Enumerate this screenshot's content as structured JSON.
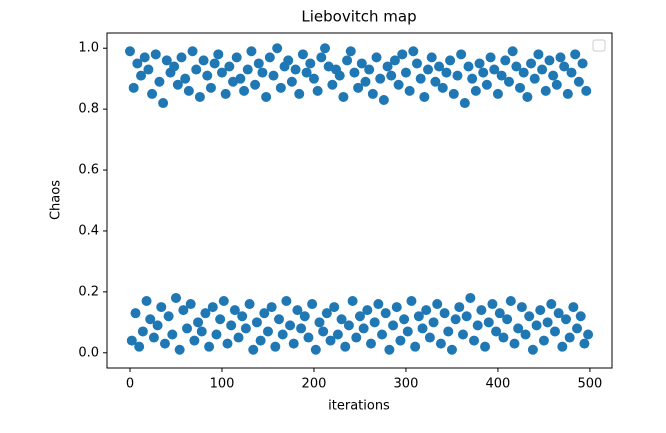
{
  "chart_data": {
    "type": "scatter",
    "title": "Liebovitch map",
    "xlabel": "iterations",
    "ylabel": "Chaos",
    "color": "#1f77b4",
    "xlim": [
      -25,
      524
    ],
    "ylim": [
      -0.05,
      1.05
    ],
    "xticks": [
      0,
      100,
      200,
      300,
      400,
      500
    ],
    "yticks": [
      {
        "value": 0,
        "label": "0.0"
      },
      0.2,
      0.4,
      0.6,
      0.8,
      {
        "value": 1,
        "label": "1.0"
      }
    ],
    "x": [
      0,
      2,
      4,
      6,
      8,
      10,
      12,
      14,
      16,
      18,
      20,
      22,
      24,
      26,
      28,
      30,
      32,
      34,
      36,
      38,
      40,
      42,
      44,
      46,
      48,
      50,
      52,
      54,
      56,
      58,
      60,
      62,
      64,
      66,
      68,
      70,
      72,
      74,
      76,
      78,
      80,
      82,
      84,
      86,
      88,
      90,
      92,
      94,
      96,
      98,
      100,
      102,
      104,
      106,
      108,
      110,
      112,
      114,
      116,
      118,
      120,
      122,
      124,
      126,
      128,
      130,
      132,
      134,
      136,
      138,
      140,
      142,
      144,
      146,
      148,
      150,
      152,
      154,
      156,
      158,
      160,
      162,
      164,
      166,
      168,
      170,
      172,
      174,
      176,
      178,
      180,
      182,
      184,
      186,
      188,
      190,
      192,
      194,
      196,
      198,
      200,
      202,
      204,
      206,
      208,
      210,
      212,
      214,
      216,
      218,
      220,
      222,
      224,
      226,
      228,
      230,
      232,
      234,
      236,
      238,
      240,
      242,
      244,
      246,
      248,
      250,
      252,
      254,
      256,
      258,
      260,
      262,
      264,
      266,
      268,
      270,
      272,
      274,
      276,
      278,
      280,
      282,
      284,
      286,
      288,
      290,
      292,
      294,
      296,
      298,
      300,
      302,
      304,
      306,
      308,
      310,
      312,
      314,
      316,
      318,
      320,
      322,
      324,
      326,
      328,
      330,
      332,
      334,
      336,
      338,
      340,
      342,
      344,
      346,
      348,
      350,
      352,
      354,
      356,
      358,
      360,
      362,
      364,
      366,
      368,
      370,
      372,
      374,
      376,
      378,
      380,
      382,
      384,
      386,
      388,
      390,
      392,
      394,
      396,
      398,
      400,
      402,
      404,
      406,
      408,
      410,
      412,
      414,
      416,
      418,
      420,
      422,
      424,
      426,
      428,
      430,
      432,
      434,
      436,
      438,
      440,
      442,
      444,
      446,
      448,
      450,
      452,
      454,
      456,
      458,
      460,
      462,
      464,
      466,
      468,
      470,
      472,
      474,
      476,
      478,
      480,
      482,
      484,
      486,
      488,
      490,
      492,
      494,
      496,
      498
    ],
    "values": [
      0.99,
      0.04,
      0.87,
      0.13,
      0.95,
      0.02,
      0.91,
      0.07,
      0.97,
      0.17,
      0.93,
      0.11,
      0.85,
      0.05,
      0.98,
      0.09,
      0.89,
      0.15,
      0.82,
      0.03,
      0.96,
      0.12,
      0.92,
      0.06,
      0.94,
      0.18,
      0.88,
      0.01,
      0.97,
      0.14,
      0.9,
      0.08,
      0.86,
      0.16,
      0.99,
      0.04,
      0.93,
      0.1,
      0.84,
      0.07,
      0.96,
      0.13,
      0.91,
      0.02,
      0.87,
      0.15,
      0.95,
      0.06,
      0.98,
      0.11,
      0.92,
      0.17,
      0.85,
      0.03,
      0.94,
      0.09,
      0.89,
      0.14,
      0.97,
      0.05,
      0.9,
      0.12,
      0.86,
      0.08,
      0.93,
      0.16,
      0.99,
      0.01,
      0.88,
      0.1,
      0.95,
      0.04,
      0.92,
      0.13,
      0.84,
      0.07,
      0.97,
      0.15,
      0.91,
      0.02,
      1.0,
      0.11,
      0.87,
      0.06,
      0.94,
      0.17,
      0.96,
      0.09,
      0.89,
      0.03,
      0.93,
      0.14,
      0.85,
      0.08,
      0.98,
      0.12,
      0.92,
      0.05,
      0.95,
      0.16,
      0.9,
      0.01,
      0.86,
      0.1,
      0.97,
      0.07,
      1.0,
      0.13,
      0.94,
      0.04,
      0.88,
      0.15,
      0.93,
      0.06,
      0.91,
      0.11,
      0.84,
      0.02,
      0.96,
      0.09,
      0.99,
      0.17,
      0.92,
      0.05,
      0.87,
      0.12,
      0.95,
      0.08,
      0.89,
      0.14,
      0.93,
      0.03,
      0.85,
      0.1,
      0.97,
      0.16,
      0.9,
      0.06,
      0.83,
      0.13,
      0.94,
      0.01,
      0.91,
      0.09,
      0.96,
      0.15,
      0.88,
      0.04,
      0.98,
      0.11,
      0.92,
      0.07,
      0.86,
      0.17,
      0.99,
      0.02,
      0.95,
      0.12,
      0.9,
      0.08,
      0.84,
      0.14,
      0.93,
      0.05,
      0.97,
      0.1,
      0.89,
      0.16,
      0.94,
      0.03,
      0.87,
      0.13,
      0.92,
      0.07,
      0.96,
      0.01,
      0.85,
      0.11,
      0.91,
      0.15,
      0.98,
      0.06,
      0.82,
      0.12,
      0.94,
      0.18,
      0.9,
      0.04,
      0.86,
      0.09,
      0.95,
      0.14,
      0.92,
      0.02,
      0.88,
      0.1,
      0.97,
      0.16,
      0.93,
      0.07,
      0.85,
      0.13,
      0.91,
      0.05,
      0.96,
      0.11,
      0.89,
      0.17,
      0.99,
      0.03,
      0.94,
      0.08,
      0.87,
      0.15,
      0.92,
      0.06,
      0.84,
      0.12,
      0.95,
      0.01,
      0.9,
      0.09,
      0.98,
      0.14,
      0.93,
      0.04,
      0.86,
      0.1,
      0.96,
      0.16,
      0.91,
      0.07,
      0.88,
      0.13,
      0.97,
      0.02,
      0.94,
      0.11,
      0.85,
      0.05,
      0.92,
      0.15,
      0.98,
      0.08,
      0.89,
      0.12,
      0.95,
      0.03,
      0.86,
      0.06
    ]
  }
}
